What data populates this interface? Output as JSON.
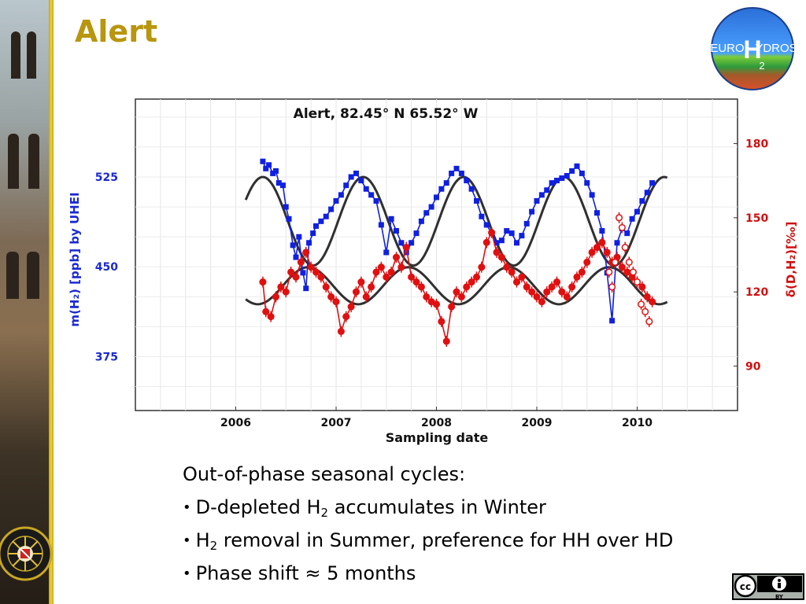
{
  "slide": {
    "title": "Alert",
    "logo": {
      "line1_left": "EURO",
      "big_letter": "H",
      "line1_right": "YDROS",
      "subscript": "2"
    },
    "license_badge": {
      "text": "BY"
    },
    "seal_icon": "university-seal-icon"
  },
  "bullets": {
    "intro": "Out-of-phase seasonal cycles:",
    "b1_pre": "D-depleted H",
    "b1_sub": "2",
    "b1_post": " accumulates in Winter",
    "b2_pre": "H",
    "b2_sub": "2",
    "b2_post": " removal in Summer, preference for HH over HD",
    "b3": "Phase shift ≈ 5 months"
  },
  "chart_data": {
    "type": "scatter",
    "title": "Alert, 82.45° N 65.52° W",
    "xlabel": "Sampling date",
    "ylabel_left": "m(H₂) [ppb] by UHEI",
    "ylabel_right": "δ(D,H₂)[‰]",
    "xlim": [
      2005,
      2011
    ],
    "x_ticks": [
      "2006",
      "2007",
      "2008",
      "2009",
      "2010"
    ],
    "ylim_left": [
      330,
      590
    ],
    "y_ticks_left": [
      375,
      450,
      525
    ],
    "ylim_right": [
      72,
      198
    ],
    "y_ticks_right": [
      90,
      120,
      150,
      180
    ],
    "grid": true,
    "colors": {
      "mixing_ratio": "#1020e0",
      "delta_d": "#e01010",
      "fit": "#303030",
      "left_axis": "#1a2ad0",
      "right_axis": "#d01010"
    },
    "series": [
      {
        "axis": "left",
        "x": [
          2006.27,
          2006.3,
          2006.33,
          2006.37,
          2006.4,
          2006.43,
          2006.47,
          2006.5,
          2006.53,
          2006.57,
          2006.6,
          2006.63,
          2006.67,
          2006.7,
          2006.73,
          2006.77,
          2006.8,
          2006.85,
          2006.9,
          2006.95,
          2007.0,
          2007.05,
          2007.1,
          2007.15,
          2007.2,
          2007.25,
          2007.3,
          2007.35,
          2007.4,
          2007.45,
          2007.5,
          2007.55,
          2007.6,
          2007.65,
          2007.7,
          2007.75,
          2007.8,
          2007.85,
          2007.9,
          2007.95,
          2008.0,
          2008.05,
          2008.1,
          2008.15,
          2008.2,
          2008.25,
          2008.3,
          2008.35,
          2008.4,
          2008.45,
          2008.5,
          2008.55,
          2008.6,
          2008.65,
          2008.7,
          2008.75,
          2008.8,
          2008.85,
          2008.9,
          2008.95,
          2009.0,
          2009.05,
          2009.1,
          2009.15,
          2009.2,
          2009.25,
          2009.3,
          2009.35,
          2009.4,
          2009.45,
          2009.5,
          2009.55,
          2009.6,
          2009.65,
          2009.7,
          2009.75,
          2009.8,
          2009.85,
          2009.9,
          2009.95,
          2010.0,
          2010.05,
          2010.1,
          2010.15
        ],
        "y": [
          538,
          532,
          535,
          528,
          530,
          520,
          518,
          500,
          490,
          468,
          458,
          475,
          445,
          432,
          470,
          478,
          484,
          488,
          492,
          498,
          505,
          510,
          518,
          525,
          528,
          522,
          515,
          510,
          505,
          485,
          462,
          490,
          480,
          470,
          462,
          470,
          478,
          488,
          495,
          500,
          508,
          515,
          520,
          528,
          532,
          528,
          522,
          515,
          505,
          492,
          485,
          478,
          470,
          472,
          480,
          478,
          470,
          476,
          486,
          496,
          505,
          510,
          514,
          520,
          522,
          524,
          526,
          530,
          534,
          528,
          520,
          510,
          495,
          480,
          445,
          405,
          470,
          482,
          478,
          490,
          496,
          505,
          512,
          520
        ]
      },
      {
        "axis": "right",
        "x": [
          2006.27,
          2006.3,
          2006.35,
          2006.4,
          2006.45,
          2006.5,
          2006.55,
          2006.6,
          2006.65,
          2006.7,
          2006.75,
          2006.8,
          2006.85,
          2006.9,
          2006.95,
          2007.0,
          2007.05,
          2007.1,
          2007.15,
          2007.2,
          2007.25,
          2007.3,
          2007.35,
          2007.4,
          2007.45,
          2007.5,
          2007.55,
          2007.6,
          2007.65,
          2007.7,
          2007.75,
          2007.8,
          2007.85,
          2007.9,
          2007.95,
          2008.0,
          2008.05,
          2008.1,
          2008.15,
          2008.2,
          2008.25,
          2008.3,
          2008.35,
          2008.4,
          2008.45,
          2008.5,
          2008.55,
          2008.6,
          2008.65,
          2008.7,
          2008.75,
          2008.8,
          2008.85,
          2008.9,
          2008.95,
          2009.0,
          2009.05,
          2009.1,
          2009.15,
          2009.2,
          2009.25,
          2009.3,
          2009.35,
          2009.4,
          2009.45,
          2009.5,
          2009.55,
          2009.6,
          2009.65,
          2009.7,
          2009.75,
          2009.8,
          2009.85,
          2009.9,
          2009.95,
          2010.0,
          2010.05,
          2010.1,
          2010.15
        ],
        "y": [
          124,
          112,
          110,
          118,
          122,
          120,
          128,
          126,
          132,
          136,
          130,
          128,
          126,
          122,
          118,
          116,
          104,
          110,
          114,
          120,
          124,
          118,
          122,
          128,
          130,
          126,
          128,
          134,
          130,
          138,
          126,
          124,
          122,
          118,
          116,
          115,
          108,
          100,
          114,
          120,
          118,
          122,
          124,
          126,
          130,
          140,
          144,
          136,
          134,
          130,
          128,
          124,
          126,
          122,
          120,
          118,
          116,
          120,
          122,
          124,
          120,
          118,
          122,
          126,
          128,
          132,
          136,
          138,
          140,
          136,
          132,
          134,
          130,
          128,
          126,
          124,
          122,
          118,
          116
        ]
      },
      {
        "axis": "right",
        "name": "",
        "hollow": true,
        "x": [
          2009.72,
          2009.75,
          2009.78,
          2009.82,
          2009.85,
          2009.88,
          2009.92,
          2009.96,
          2010.0,
          2010.04,
          2010.08,
          2010.12
        ],
        "y": [
          128,
          122,
          132,
          150,
          146,
          138,
          132,
          128,
          124,
          115,
          112,
          108
        ]
      }
    ],
    "fits": [
      {
        "axis": "left",
        "phase": 2007.27,
        "mean": 488,
        "amplitude": 37,
        "x_range": [
          2006.1,
          2010.3
        ]
      },
      {
        "axis": "right",
        "phase": 2006.72,
        "mean": 122.5,
        "amplitude": 7.5,
        "x_range": [
          2006.1,
          2010.3
        ]
      }
    ]
  }
}
